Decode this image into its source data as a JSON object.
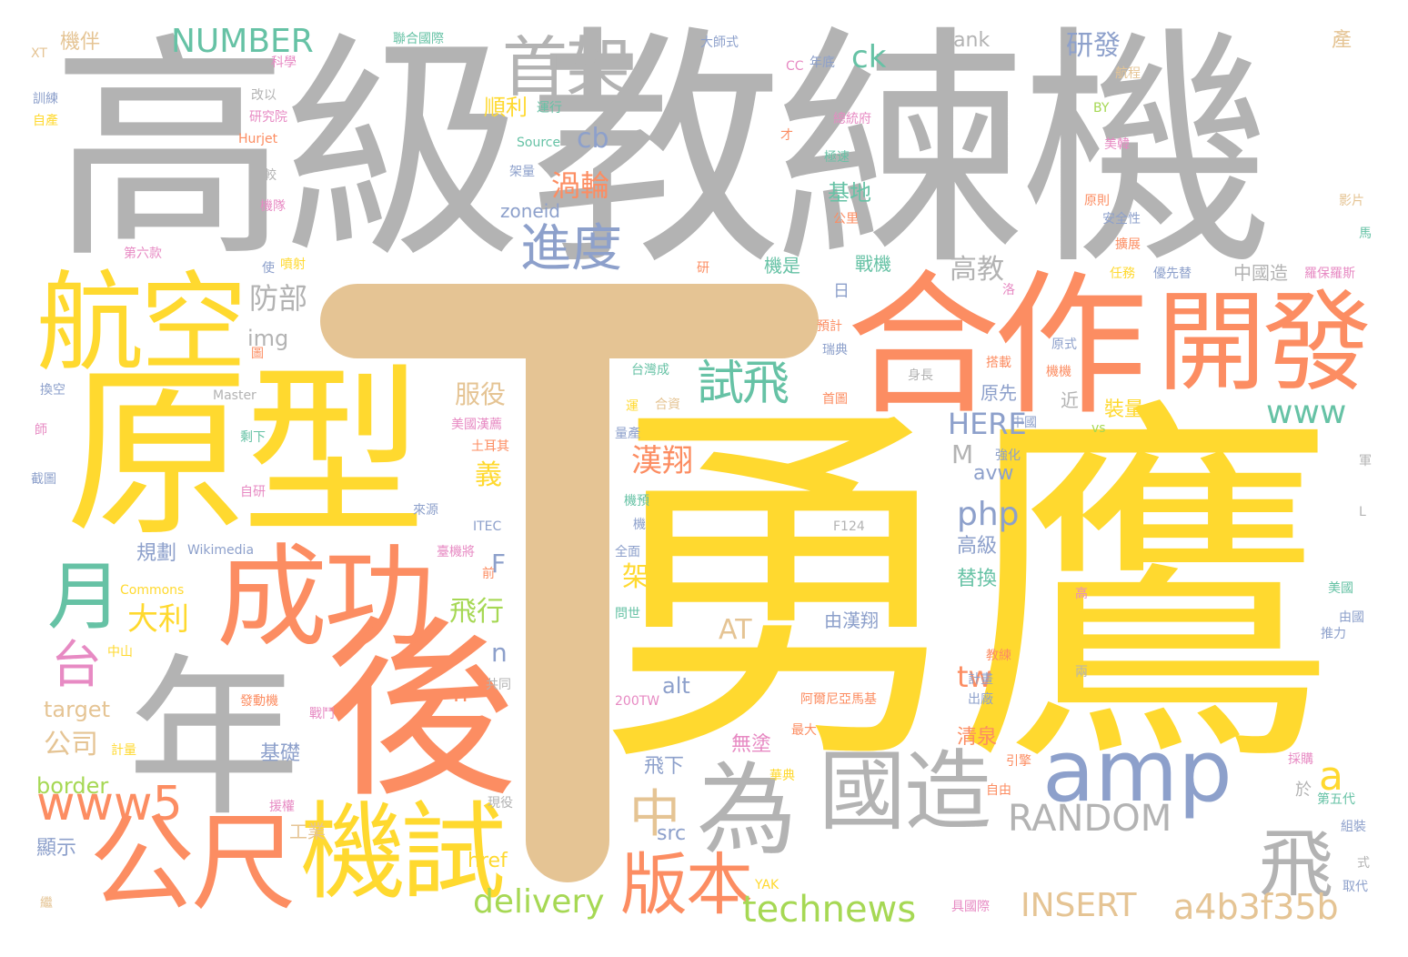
{
  "cloud": {
    "t": "T",
    "yong_ying": "勇鷹",
    "gao_ji": "高級",
    "jiao_lian_ji": "教練機",
    "yuan_xing": "原型",
    "hou": "後",
    "nian": "年",
    "he_zuo": "合作",
    "kai_fa": "開發",
    "cheng_gong": "成功",
    "amp": "amp",
    "wei": "為",
    "guo_zao": "國造",
    "hang_kong": "航空",
    "gong_chi": "公尺",
    "ji_shi": "機試",
    "shou_jia": "首架",
    "jin_du": "進度",
    "shi_fei": "試飛",
    "yue": "月",
    "www5": "www5",
    "fei": "飛",
    "ban_ben": "版本",
    "technews": "technews",
    "delivery": "delivery",
    "insert": "INSERT",
    "a4b3f35b": "a4b3f35b",
    "random": "RANDOM",
    "www": "www",
    "number": "NUMBER",
    "zhong": "中",
    "tai": "台",
    "da_li": "大利",
    "ck": "ck",
    "cb": "cb",
    "yan_fa": "研發",
    "wo_lun": "渦輪",
    "zoneid": "zoneid",
    "fang_bu": "防部",
    "img": "img",
    "fu_yi": "服役",
    "han_xiang": "漢翔",
    "php": "php",
    "tw": "tw",
    "here": "HERE",
    "at": "AT",
    "a": "a",
    "gao_jiao": "高教",
    "zhuang_liang": "裝量",
    "ji_di": "基地",
    "zhan_ji": "戰機",
    "shun_li": "順利",
    "blank": "blank",
    "fei_xing": "飛行",
    "gong_si": "公司",
    "target": "target",
    "border": "border",
    "n": "n",
    "F": "F",
    "M": "M",
    "yi": "義",
    "jia": "架",
    "ji_chu": "基礎",
    "wu_tu": "無塗",
    "fei_xia": "飛下",
    "src": "src",
    "href": "href",
    "qing_quan": "清泉",
    "ti_huan": "替換",
    "gao_ji_small": "高級",
    "you_han_xiang": "由漢翔",
    "alt": "alt",
    "avw": "avw",
    "gui_hua": "規劃",
    "gong_ye": "工業",
    "xian_shi": "顯示",
    "ji_ban": "機伴",
    "zhong_guo_zao": "中國造",
    "yuan_xian": "原先",
    "jin": "近",
    "ji_shi_small": "機是",
    "ri": "日",
    "chan": "產",
    "yu": "於",
    "small_words": [
      "XT",
      "科學",
      "訓練",
      "自產",
      "Hurjet",
      "研究院",
      "改以",
      "聯合國際",
      "大師式",
      "CC",
      "年底",
      "航程",
      "BY",
      "運行",
      "Source",
      "架量",
      "總統府",
      "才",
      "極速",
      "美韓",
      "原則",
      "安全性",
      "公里",
      "影片",
      "機隊",
      "較",
      "第六款",
      "噴射",
      "使",
      "研",
      "任務",
      "優先替",
      "羅保羅斯",
      "預計",
      "瑞典",
      "身長",
      "搭載",
      "機機",
      "原式",
      "首圖",
      "台灣成",
      "合資",
      "運",
      "換空",
      "Master",
      "美國漢薦",
      "土耳其",
      "量產",
      "剩下",
      "強化",
      "中國",
      "vs",
      "師",
      "截圖",
      "自研",
      "機預",
      "來源",
      "ITEC",
      "F124",
      "機",
      "全面",
      "前",
      "臺機將",
      "Wikimedia",
      "Commons",
      "問世",
      "高",
      "美國",
      "由國",
      "推力",
      "中山",
      "教練",
      "計畫",
      "出廠",
      "兩",
      "發動機",
      "戰鬥",
      "阿爾尼亞馬基",
      "200TW",
      "最大",
      "共同",
      "計量",
      "引擎",
      "採購",
      "華典",
      "自由",
      "第五代",
      "組裝",
      "現役",
      "援權",
      "繼",
      "YAK",
      "具國際",
      "取代",
      "式",
      "軍",
      "L",
      "馬",
      "擴展",
      "圖",
      "洛"
    ]
  }
}
